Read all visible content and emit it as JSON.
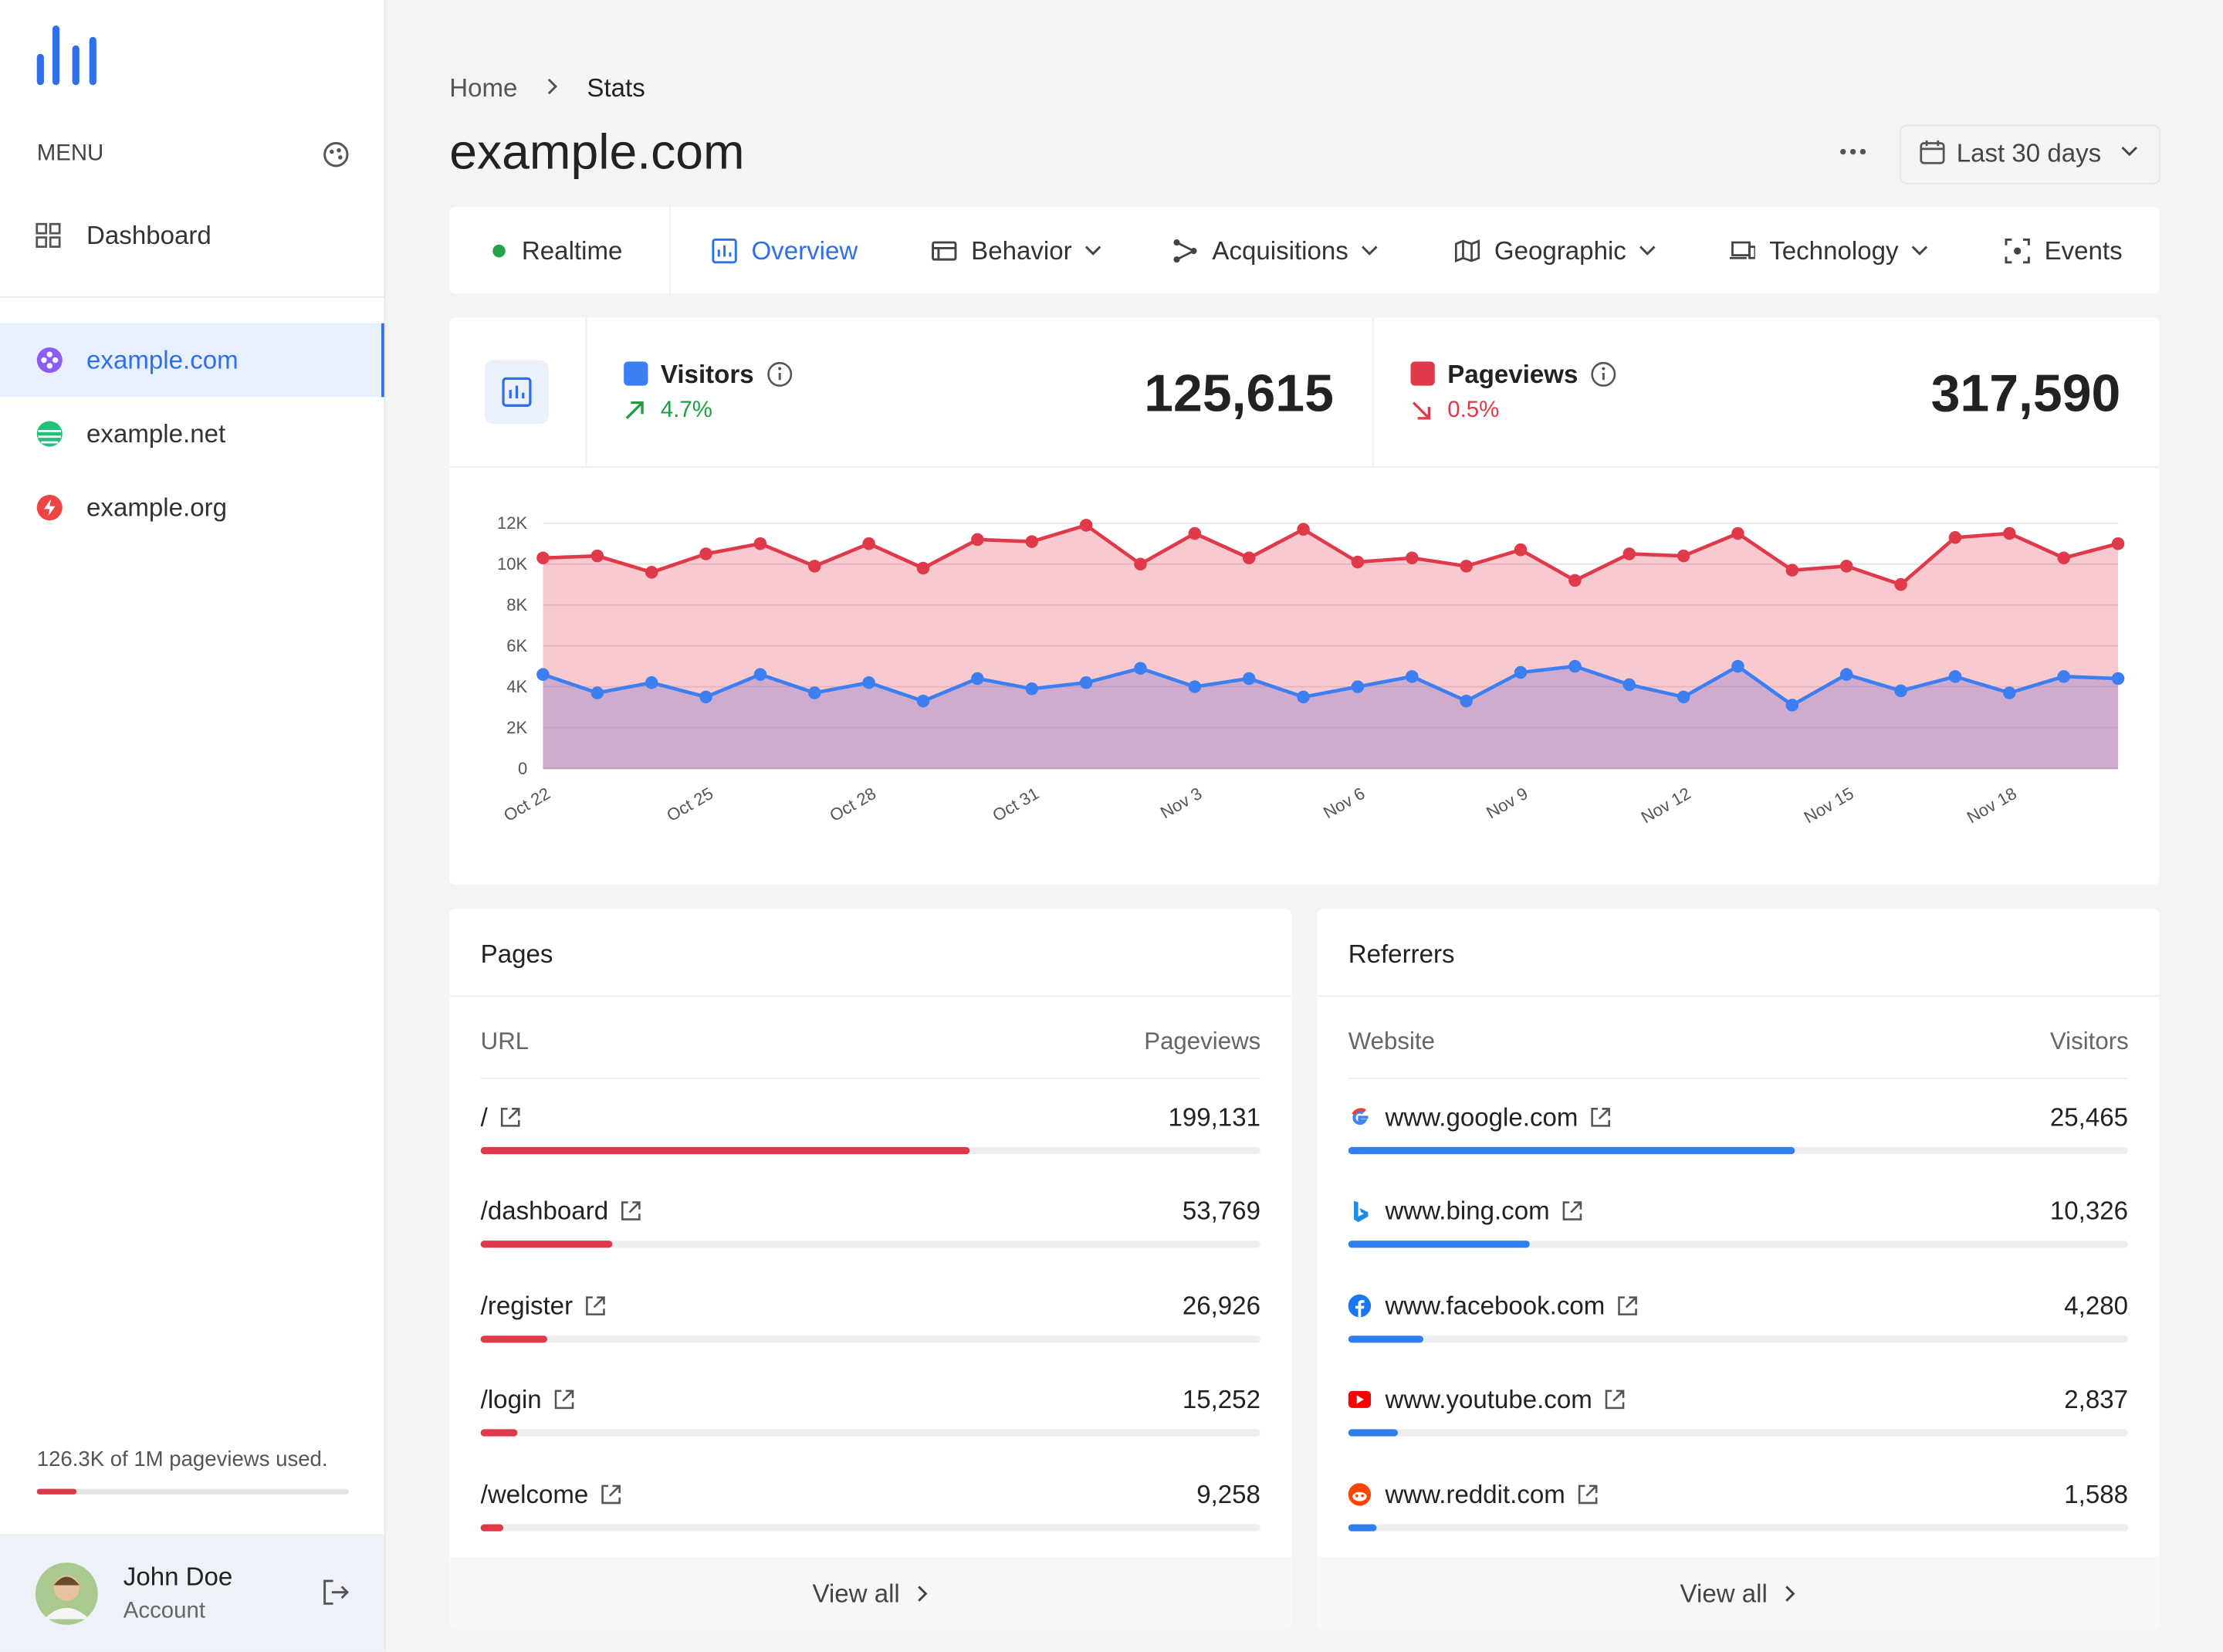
{
  "sidebar": {
    "menu_label": "MENU",
    "nav": [
      "Dashboard"
    ],
    "sites": [
      "example.com",
      "example.net",
      "example.org"
    ],
    "usage": {
      "text": "126.3K of 1M pageviews used.",
      "used": 126300,
      "limit": 1000000
    },
    "user": {
      "name": "John Doe",
      "role": "Account"
    }
  },
  "breadcrumb": [
    "Home",
    "Stats"
  ],
  "title": "example.com",
  "date_range": "Last 30 days",
  "tabs": [
    "Realtime",
    "Overview",
    "Behavior",
    "Acquisitions",
    "Geographic",
    "Technology",
    "Events"
  ],
  "metrics": [
    {
      "name": "Visitors",
      "change": "4.7%",
      "value": 125615,
      "label": "125,615"
    },
    {
      "name": "Pageviews",
      "change": "0.5%",
      "value": 317590,
      "label": "317,590"
    }
  ],
  "chart_data": {
    "type": "area",
    "categories": [
      "Oct 22",
      null,
      null,
      "Oct 25",
      null,
      null,
      "Oct 28",
      null,
      null,
      "Oct 31",
      null,
      null,
      "Nov 3",
      null,
      null,
      "Nov 6",
      null,
      null,
      "Nov 9",
      null,
      null,
      "Nov 12",
      null,
      null,
      "Nov 15",
      null,
      null,
      "Nov 18",
      null,
      null
    ],
    "series": [
      {
        "name": "Pageviews",
        "color": "#e0394a",
        "values": [
          10300,
          10400,
          9600,
          10500,
          11000,
          9900,
          11000,
          9800,
          11200,
          11100,
          11900,
          10000,
          11500,
          10300,
          11700,
          10100,
          10300,
          9900,
          10700,
          9200,
          10500,
          10400,
          11500,
          9700,
          9900,
          9000,
          11300,
          11500,
          10300,
          11000
        ]
      },
      {
        "name": "Visitors",
        "color": "#3b7ff2",
        "values": [
          4600,
          3700,
          4200,
          3500,
          4600,
          3700,
          4200,
          3300,
          4400,
          3900,
          4200,
          4900,
          4000,
          4400,
          3500,
          4000,
          4500,
          3300,
          4700,
          5000,
          4100,
          3500,
          5000,
          3100,
          4600,
          3800,
          4500,
          3700,
          4500,
          4400
        ]
      }
    ],
    "ylim": [
      0,
      12000
    ],
    "yticks": [
      0,
      {
        "value": 2000,
        "label": "2K"
      },
      {
        "value": 4000,
        "label": "4K"
      },
      {
        "value": 6000,
        "label": "6K"
      },
      {
        "value": 8000,
        "label": "8K"
      },
      {
        "value": 10000,
        "label": "10K"
      },
      {
        "value": 12000,
        "label": "12K"
      }
    ],
    "grid": true
  },
  "pages": {
    "title": "Pages",
    "col_left": "URL",
    "col_right": "Pageviews",
    "footer": "View all",
    "rows": [
      {
        "name": "/",
        "value": 199131,
        "label": "199,131"
      },
      {
        "name": "/dashboard",
        "value": 53769,
        "label": "53,769"
      },
      {
        "name": "/register",
        "value": 26926,
        "label": "26,926"
      },
      {
        "name": "/login",
        "value": 15252,
        "label": "15,252"
      },
      {
        "name": "/welcome",
        "value": 9258,
        "label": "9,258"
      }
    ]
  },
  "referrers": {
    "title": "Referrers",
    "col_left": "Website",
    "col_right": "Visitors",
    "footer": "View all",
    "rows": [
      {
        "name": "www.google.com",
        "value": 25465,
        "label": "25,465"
      },
      {
        "name": "www.bing.com",
        "value": 10326,
        "label": "10,326"
      },
      {
        "name": "www.facebook.com",
        "value": 4280,
        "label": "4,280"
      },
      {
        "name": "www.youtube.com",
        "value": 2837,
        "label": "2,837"
      },
      {
        "name": "www.reddit.com",
        "value": 1588,
        "label": "1,588"
      }
    ]
  }
}
